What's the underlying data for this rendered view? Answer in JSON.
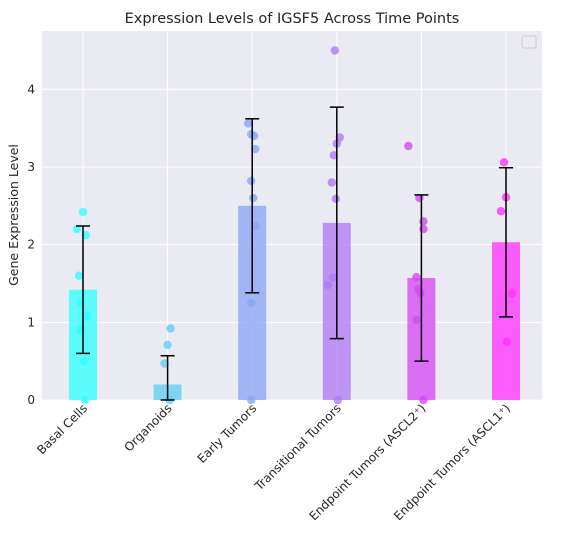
{
  "chart_data": {
    "type": "bar",
    "title": "Expression Levels of IGSF5 Across Time Points",
    "xlabel": "",
    "ylabel": "Gene Expression Level",
    "ylim": [
      0,
      4.75
    ],
    "yticks": [
      "0",
      "1",
      "2",
      "3",
      "4"
    ],
    "grid": true,
    "legend": "top-right",
    "categories": [
      "Basal Cells",
      "Organoids",
      "Early Tumors",
      "Transitional Tumors",
      "Endpoint Tumors (ASCL2⁺)",
      "Endpoint Tumors (ASCL1⁺)"
    ],
    "values": [
      1.42,
      0.2,
      2.5,
      2.28,
      1.57,
      2.03
    ],
    "errors": [
      0.82,
      0.37,
      1.12,
      1.49,
      1.07,
      0.96
    ],
    "colors": [
      "#33ffff",
      "#5ccff2",
      "#8aa6f5",
      "#b07af5",
      "#d549f5",
      "#ff33ff"
    ],
    "points": [
      [
        2.42,
        2.2,
        2.12,
        1.6,
        1.25,
        1.08,
        0.9,
        0.5,
        0.0
      ],
      [
        0.92,
        0.71,
        0.47,
        0.0
      ],
      [
        3.56,
        3.42,
        3.4,
        3.23,
        2.82,
        2.6,
        2.24,
        1.25,
        0.0
      ],
      [
        4.5,
        3.38,
        3.3,
        3.15,
        2.8,
        2.59,
        1.58,
        1.48,
        0.0
      ],
      [
        3.27,
        2.6,
        2.3,
        2.2,
        1.58,
        1.43,
        1.38,
        1.03,
        0.0
      ],
      [
        3.06,
        2.61,
        2.43,
        1.37,
        0.75
      ]
    ]
  }
}
